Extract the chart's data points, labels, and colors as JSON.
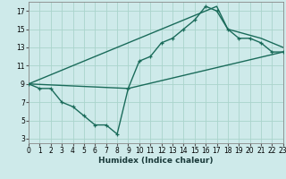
{
  "series": [
    {
      "x": [
        0,
        1,
        2,
        3,
        4,
        5,
        6,
        7,
        8,
        9,
        10,
        11,
        12,
        13,
        14,
        15,
        16,
        17,
        18,
        19,
        20,
        21,
        22,
        23
      ],
      "y": [
        9,
        8.5,
        8.5,
        7,
        6.5,
        5.5,
        4.5,
        4.5,
        3.5,
        8.5,
        11.5,
        12,
        13.5,
        14,
        15,
        16,
        17.5,
        17,
        15,
        14,
        14,
        13.5,
        12.5,
        12.5
      ],
      "color": "#1a6b5a",
      "lw": 1.0,
      "marker": "+"
    },
    {
      "x": [
        0,
        17,
        18,
        21,
        22,
        23
      ],
      "y": [
        9,
        17.5,
        15,
        14,
        13.5,
        13
      ],
      "color": "#1a6b5a",
      "lw": 1.0,
      "marker": null
    },
    {
      "x": [
        0,
        9,
        23
      ],
      "y": [
        9,
        8.5,
        12.5
      ],
      "color": "#1a6b5a",
      "lw": 1.0,
      "marker": null
    }
  ],
  "xlabel": "Humidex (Indice chaleur)",
  "xlim": [
    0,
    23
  ],
  "ylim": [
    2.5,
    18
  ],
  "xticks": [
    0,
    1,
    2,
    3,
    4,
    5,
    6,
    7,
    8,
    9,
    10,
    11,
    12,
    13,
    14,
    15,
    16,
    17,
    18,
    19,
    20,
    21,
    22,
    23
  ],
  "yticks": [
    3,
    5,
    7,
    9,
    11,
    13,
    15,
    17
  ],
  "grid_color": "#aad4cc",
  "bg_color": "#ceeaea",
  "line_color": "#1a6b5a",
  "xlabel_fontsize": 6.5,
  "tick_fontsize": 5.5
}
